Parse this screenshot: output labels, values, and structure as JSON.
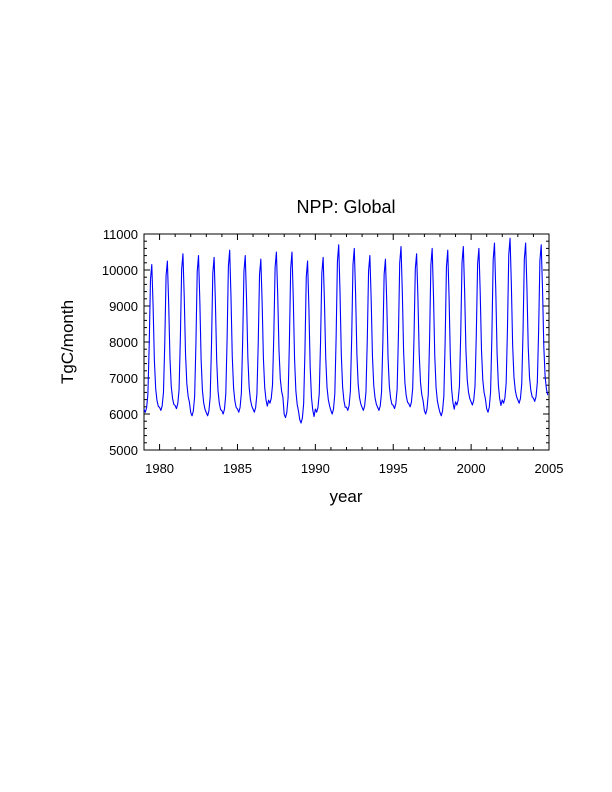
{
  "chart_data": {
    "type": "line",
    "title": "NPP: Global",
    "xlabel": "year",
    "ylabel": "TgC/month",
    "xlim": [
      1979,
      2005
    ],
    "ylim": [
      5000,
      11000
    ],
    "xticks": [
      1980,
      1985,
      1990,
      1995,
      2000,
      2005
    ],
    "xtick_labels": [
      "1980",
      "1985",
      "1990",
      "1995",
      "2000",
      "2005"
    ],
    "yticks": [
      5000,
      6000,
      7000,
      8000,
      9000,
      10000,
      11000
    ],
    "ytick_labels": [
      "5000",
      "6000",
      "7000",
      "8000",
      "9000",
      "10000",
      "11000"
    ],
    "grid": false,
    "series": [
      {
        "color": "#0000ff",
        "peaks": [
          10150,
          10250,
          10450,
          10400,
          10350,
          10550,
          10400,
          10300,
          10500,
          10500,
          10250,
          10350,
          10700,
          10600,
          10400,
          10300,
          10650,
          10450,
          10600,
          10550,
          10650,
          10600,
          10750,
          10880,
          10750,
          10700
        ],
        "troughs": [
          6050,
          6100,
          6150,
          5950,
          5950,
          6000,
          6050,
          6050,
          6300,
          5900,
          5750,
          6050,
          6000,
          6100,
          6100,
          6100,
          6150,
          6200,
          6000,
          5950,
          6250,
          6250,
          6050,
          6300,
          6300,
          6350
        ]
      }
    ]
  }
}
